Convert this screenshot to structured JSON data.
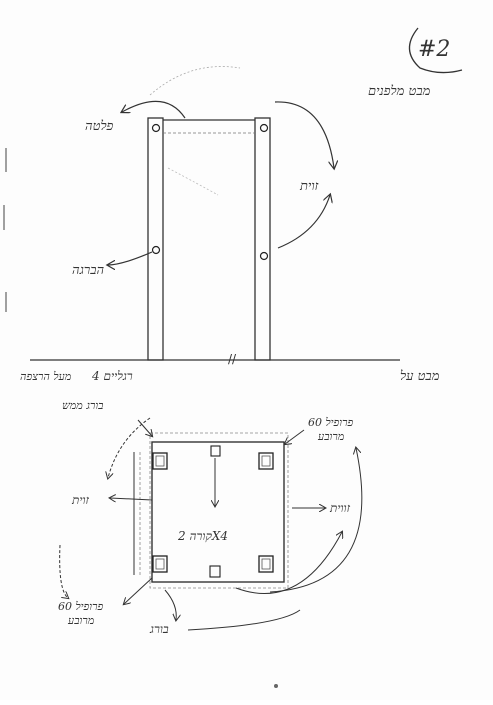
{
  "sheet": {
    "page_number": "#2",
    "front_view": {
      "title": "מבט מלפנים",
      "label_plate": "פלטה",
      "label_angle": "זוית",
      "label_welding": "הברגה",
      "footnote_legs": "4 רגליים",
      "footnote_extra": "מעל הרצפה"
    },
    "top_view": {
      "title": "מבט על",
      "label_bolt": "בורג ממש",
      "label_profile_top": "פרופיל 60",
      "label_profile_top_sub": "מרובע",
      "label_angle_left": "זוית",
      "label_angle_right": "זווית",
      "label_beam": "קורה 2X4",
      "label_profile_bottom": "פרופיל 60",
      "label_profile_bottom_sub": "מרובע",
      "label_screw": "בורג"
    }
  }
}
